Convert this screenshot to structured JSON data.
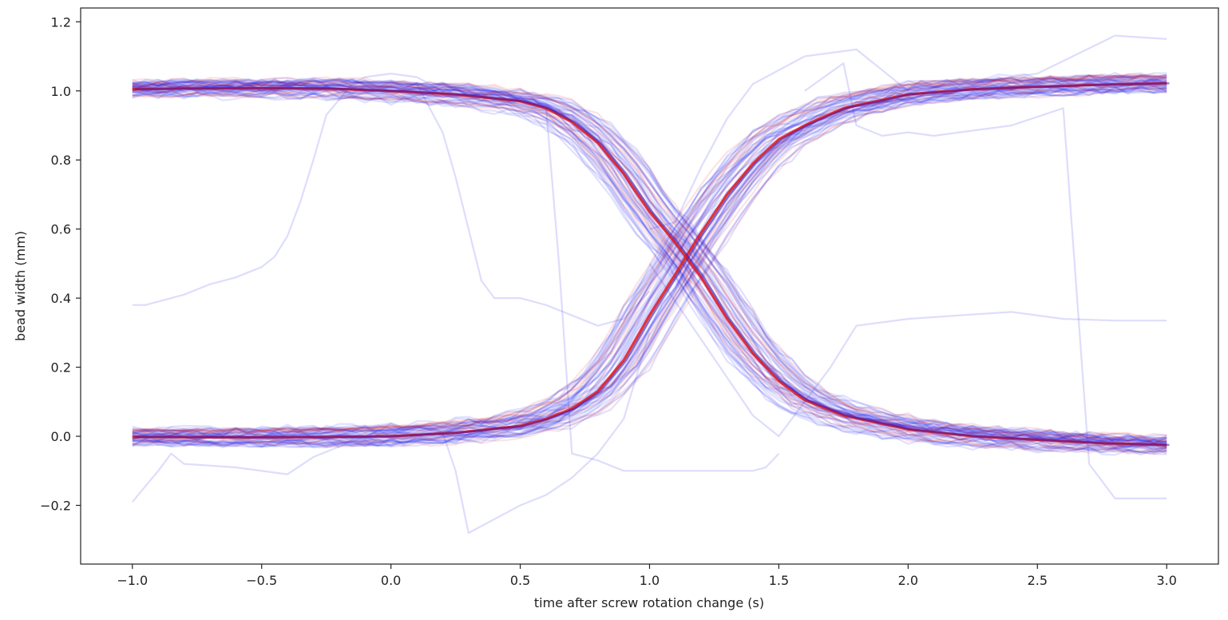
{
  "chart_data": {
    "type": "line",
    "title": "",
    "xlabel": "time after screw rotation change (s)",
    "ylabel": "bead width (mm)",
    "xlim": [
      -1.2,
      3.2
    ],
    "ylim": [
      -0.37,
      1.24
    ],
    "xticks": [
      -1.0,
      -0.5,
      0.0,
      0.5,
      1.0,
      1.5,
      2.0,
      2.5,
      3.0
    ],
    "xtick_labels": [
      "−1.0",
      "−0.5",
      "0.0",
      "0.5",
      "1.0",
      "1.5",
      "2.0",
      "2.5",
      "3.0"
    ],
    "yticks": [
      -0.2,
      0.0,
      0.2,
      0.4,
      0.6,
      0.8,
      1.0,
      1.2
    ],
    "ytick_labels": [
      "−0.2",
      "0.0",
      "0.2",
      "0.4",
      "0.6",
      "0.8",
      "1.0",
      "1.2"
    ],
    "grid": false,
    "legend": "none",
    "colors": {
      "mean_curves": "#e81818",
      "individual_traces": "#1a1aee",
      "axes": "#222222"
    },
    "series": [
      {
        "role": "mean-decreasing",
        "color": "red",
        "x": [
          -1.0,
          -0.75,
          -0.5,
          -0.25,
          0.0,
          0.25,
          0.5,
          0.6,
          0.7,
          0.8,
          0.9,
          1.0,
          1.1,
          1.15,
          1.2,
          1.3,
          1.4,
          1.5,
          1.6,
          1.75,
          2.0,
          2.25,
          2.5,
          2.75,
          3.0
        ],
        "y": [
          1.005,
          1.007,
          1.008,
          1.007,
          1.0,
          0.99,
          0.97,
          0.95,
          0.91,
          0.85,
          0.76,
          0.65,
          0.56,
          0.51,
          0.46,
          0.34,
          0.24,
          0.16,
          0.105,
          0.06,
          0.02,
          0.0,
          -0.01,
          -0.02,
          -0.025
        ]
      },
      {
        "role": "mean-increasing",
        "color": "red",
        "x": [
          -1.0,
          -0.75,
          -0.5,
          -0.25,
          0.0,
          0.25,
          0.5,
          0.6,
          0.7,
          0.8,
          0.9,
          1.0,
          1.1,
          1.15,
          1.2,
          1.3,
          1.4,
          1.5,
          1.6,
          1.75,
          2.0,
          2.25,
          2.5,
          2.75,
          3.0
        ],
        "y": [
          -0.002,
          -0.003,
          -0.003,
          -0.002,
          0.0,
          0.01,
          0.03,
          0.05,
          0.08,
          0.13,
          0.22,
          0.35,
          0.47,
          0.53,
          0.59,
          0.7,
          0.79,
          0.86,
          0.9,
          0.95,
          0.99,
          1.005,
          1.012,
          1.018,
          1.022
        ]
      },
      {
        "role": "outlier-trace",
        "color": "blue",
        "x": [
          -1.0,
          -0.95,
          -0.8,
          -0.7,
          -0.6,
          -0.5,
          -0.45,
          -0.4,
          -0.35,
          -0.3,
          -0.25,
          -0.15,
          -0.1,
          0.0,
          0.1,
          0.2,
          0.3,
          0.4,
          0.5,
          0.6,
          0.7,
          0.8,
          0.9,
          1.0
        ],
        "y": [
          0.38,
          0.38,
          0.41,
          0.44,
          0.46,
          0.49,
          0.52,
          0.58,
          0.68,
          0.8,
          0.93,
          1.02,
          1.04,
          1.05,
          1.04,
          1.0,
          0.99,
          0.98,
          0.97,
          0.96,
          0.93,
          0.87,
          0.76,
          0.63
        ]
      },
      {
        "role": "outlier-trace",
        "color": "blue",
        "x": [
          -1.0,
          -0.8,
          -0.6,
          -0.4,
          -0.2,
          0.0,
          0.1,
          0.2,
          0.25,
          0.3,
          0.35,
          0.4,
          0.5,
          0.6,
          0.7,
          0.8,
          0.9,
          1.0
        ],
        "y": [
          1.0,
          1.01,
          1.0,
          1.0,
          1.02,
          1.03,
          1.02,
          0.88,
          0.75,
          0.6,
          0.45,
          0.4,
          0.4,
          0.38,
          0.35,
          0.32,
          0.34,
          0.42
        ]
      },
      {
        "role": "outlier-trace",
        "color": "blue",
        "x": [
          -1.0,
          -0.5,
          0.0,
          0.1,
          0.2,
          0.25,
          0.3,
          0.35,
          0.4,
          0.5,
          0.6,
          0.7,
          0.8,
          0.9,
          1.0
        ],
        "y": [
          0.0,
          0.0,
          0.02,
          0.03,
          0.01,
          -0.1,
          -0.28,
          -0.26,
          -0.24,
          -0.2,
          -0.17,
          -0.12,
          -0.05,
          0.05,
          0.3
        ]
      },
      {
        "role": "outlier-trace",
        "color": "blue",
        "x": [
          1.0,
          1.2,
          1.4,
          1.5,
          1.6,
          1.7,
          1.8,
          2.0,
          2.2,
          2.4,
          2.6,
          2.8,
          3.0
        ],
        "y": [
          0.5,
          0.28,
          0.06,
          0.0,
          0.1,
          0.2,
          0.32,
          0.34,
          0.35,
          0.36,
          0.34,
          0.335,
          0.335
        ]
      },
      {
        "role": "outlier-trace",
        "color": "blue",
        "x": [
          0.6,
          0.65,
          0.7,
          0.8,
          0.9,
          1.0,
          1.1,
          1.2,
          1.3,
          1.4,
          1.45,
          1.5
        ],
        "y": [
          0.95,
          0.5,
          -0.05,
          -0.07,
          -0.1,
          -0.1,
          -0.1,
          -0.1,
          -0.1,
          -0.1,
          -0.09,
          -0.05
        ]
      },
      {
        "role": "outlier-trace",
        "color": "blue",
        "x": [
          1.0,
          1.1,
          1.2,
          1.3,
          1.4,
          1.5,
          1.6,
          1.7,
          1.8,
          2.0,
          2.2,
          2.5,
          2.8,
          3.0
        ],
        "y": [
          0.6,
          0.62,
          0.78,
          0.92,
          1.02,
          1.06,
          1.1,
          1.11,
          1.12,
          1.0,
          1.02,
          1.05,
          1.16,
          1.15
        ]
      },
      {
        "role": "outlier-trace",
        "color": "blue",
        "x": [
          1.6,
          1.75,
          1.8,
          1.9,
          2.0,
          2.1,
          2.2,
          2.4,
          2.6,
          2.7,
          2.8,
          3.0
        ],
        "y": [
          1.0,
          1.08,
          0.9,
          0.87,
          0.88,
          0.87,
          0.88,
          0.9,
          0.95,
          -0.08,
          -0.18,
          -0.18
        ]
      },
      {
        "role": "outlier-trace",
        "color": "blue",
        "x": [
          -1.0,
          -0.9,
          -0.85,
          -0.8,
          -0.6,
          -0.4,
          -0.3,
          -0.2
        ],
        "y": [
          -0.19,
          -0.1,
          -0.05,
          -0.08,
          -0.09,
          -0.11,
          -0.06,
          -0.03
        ]
      }
    ],
    "trace_bundles": [
      {
        "role": "individual-traces-decreasing",
        "color": "blue",
        "count": 45,
        "follows": "mean-decreasing"
      },
      {
        "role": "individual-traces-increasing",
        "color": "blue",
        "count": 45,
        "follows": "mean-increasing"
      },
      {
        "role": "individual-traces-decreasing",
        "color": "red",
        "count": 12,
        "follows": "mean-decreasing"
      },
      {
        "role": "individual-traces-increasing",
        "color": "red",
        "count": 12,
        "follows": "mean-increasing"
      }
    ]
  }
}
